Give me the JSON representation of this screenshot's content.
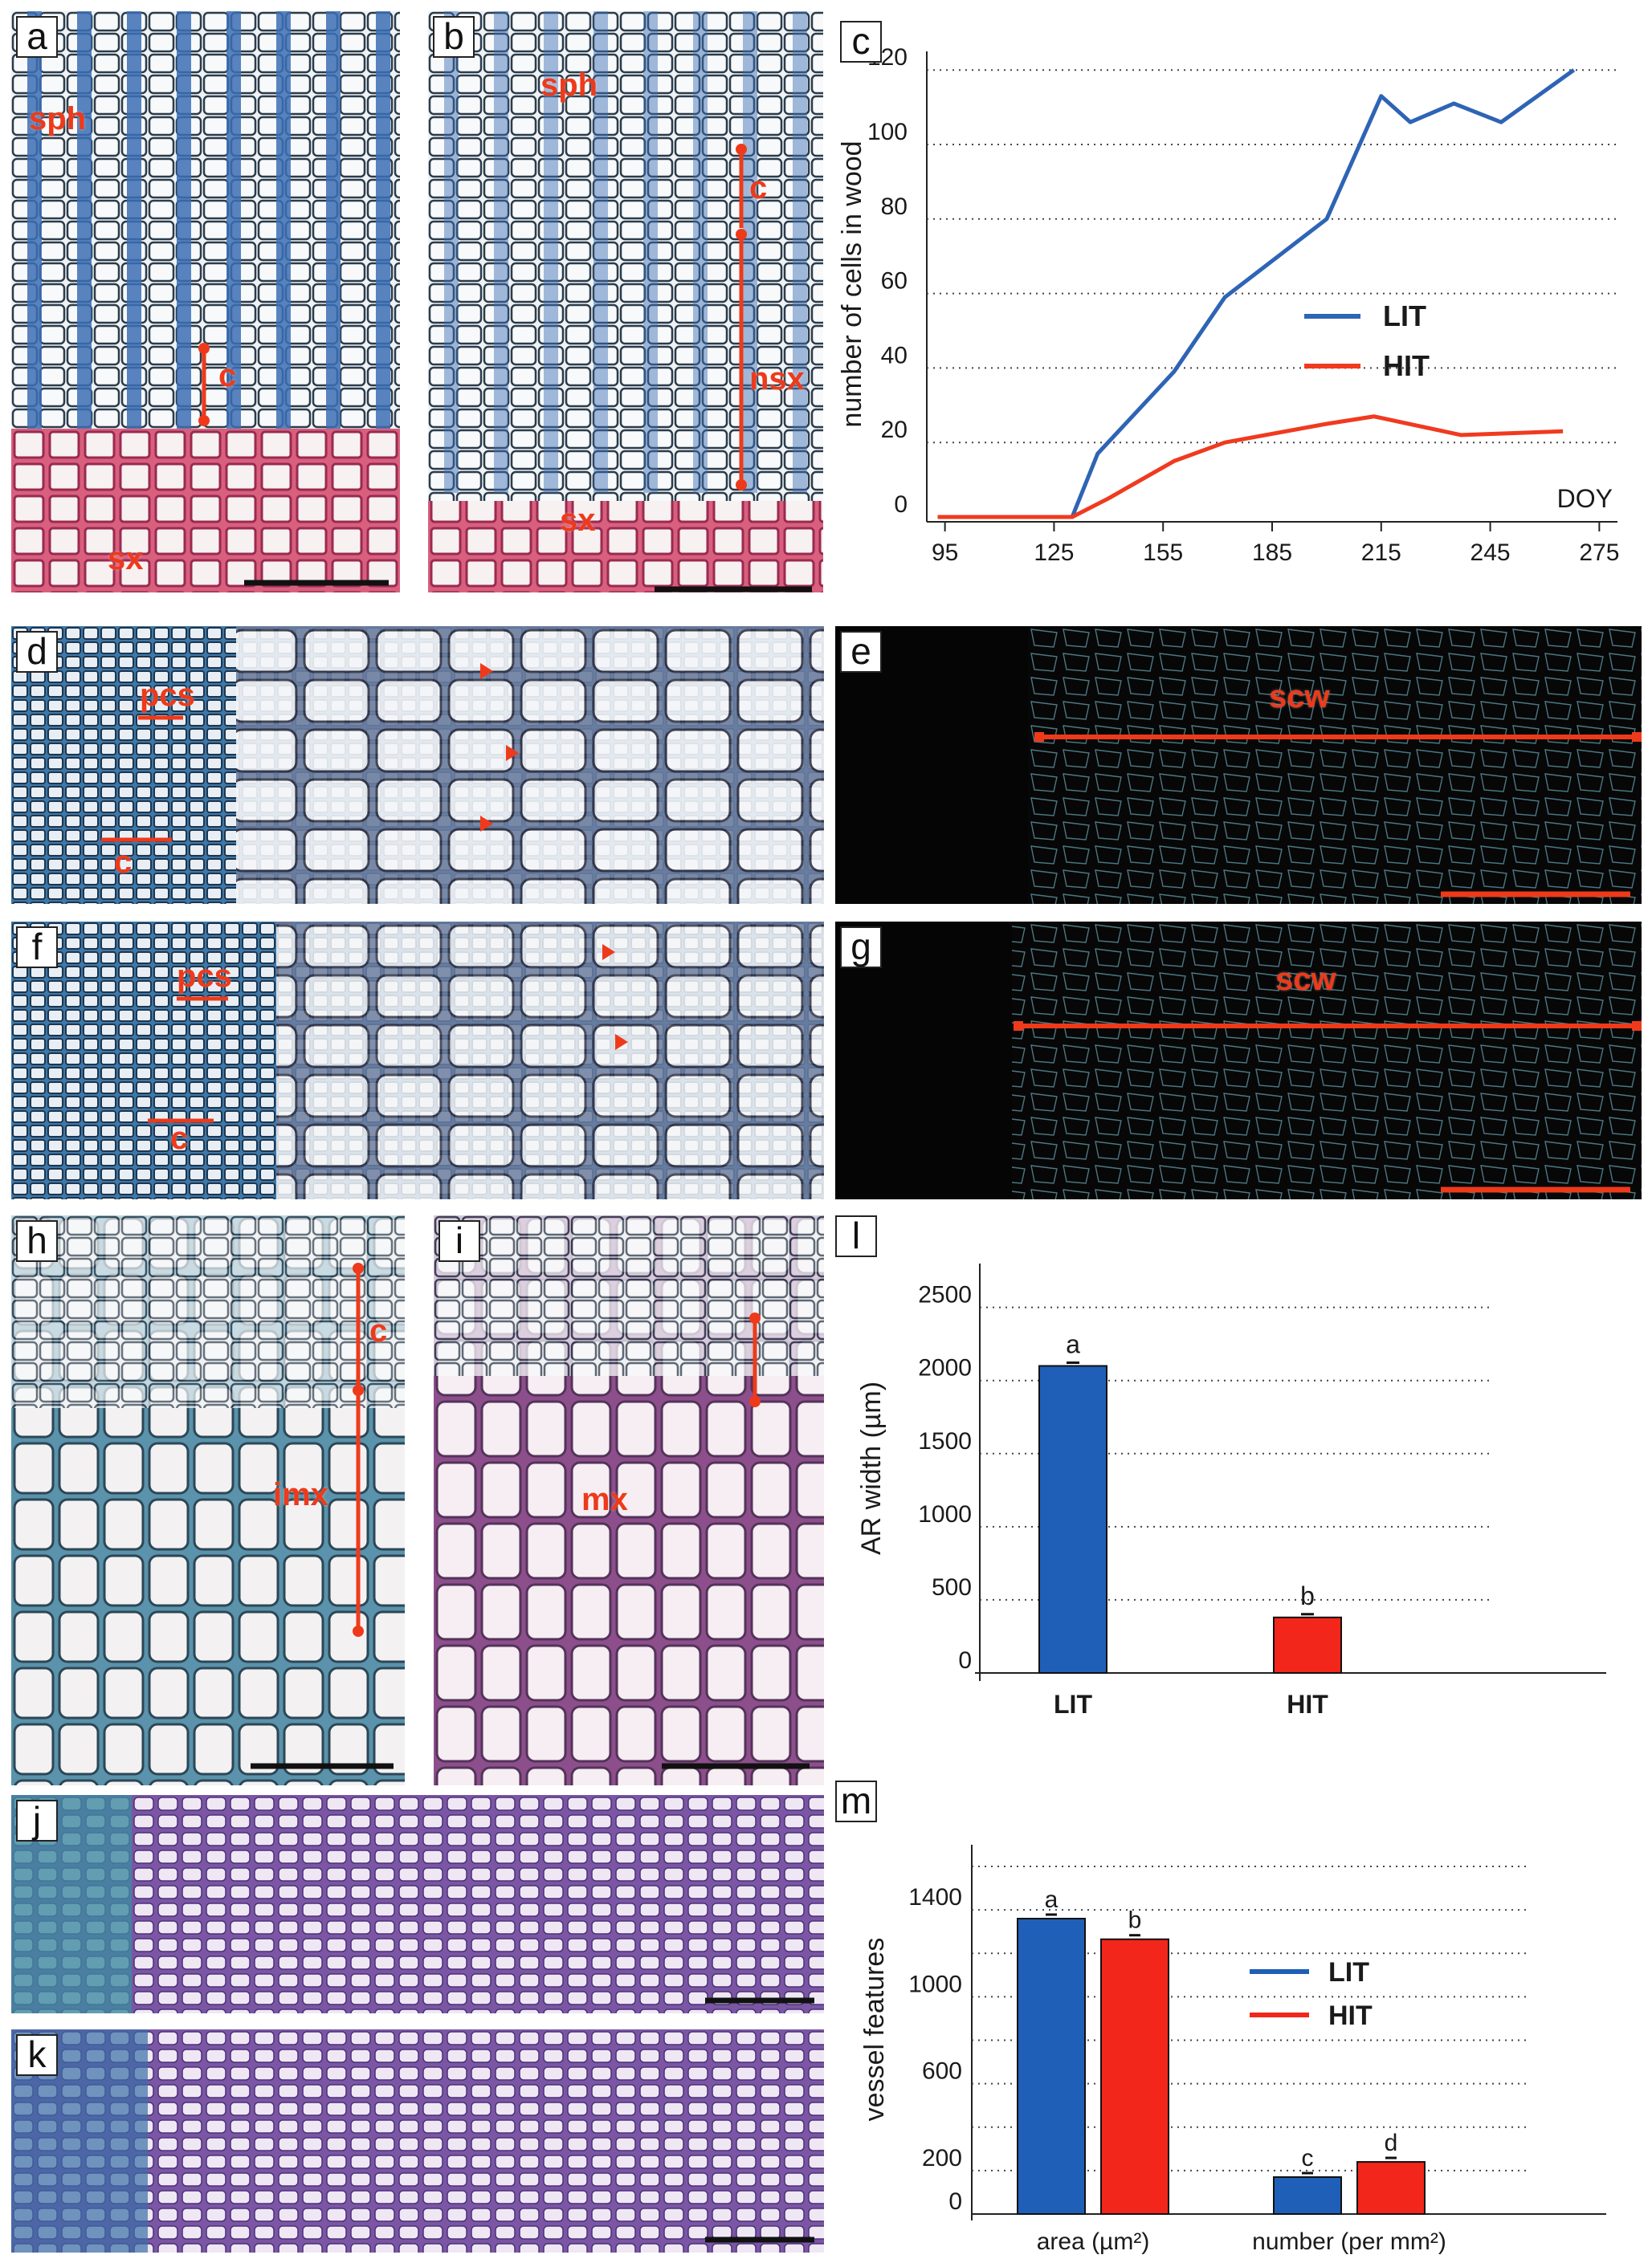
{
  "panels": {
    "a": {
      "label": "a",
      "annotations": [
        "sph",
        "c",
        "sx"
      ]
    },
    "b": {
      "label": "b",
      "annotations": [
        "sph",
        "c",
        "nsx",
        "sx"
      ]
    },
    "c": {
      "label": "c"
    },
    "d": {
      "label": "d",
      "annotations": [
        "pcs",
        "c"
      ]
    },
    "e": {
      "label": "e",
      "annotations": [
        "scw"
      ]
    },
    "f": {
      "label": "f",
      "annotations": [
        "pcs",
        "c"
      ]
    },
    "g": {
      "label": "g",
      "annotations": [
        "scw"
      ]
    },
    "h": {
      "label": "h",
      "annotations": [
        "c",
        "imx"
      ]
    },
    "i": {
      "label": "i",
      "annotations": [
        "mx"
      ]
    },
    "l": {
      "label": "l"
    },
    "j": {
      "label": "j"
    },
    "k": {
      "label": "k"
    },
    "m": {
      "label": "m"
    }
  },
  "colors": {
    "LIT": "#1f5fb8",
    "HIT": "#f2261a",
    "annotation": "#ee3a1a"
  },
  "chart_data": [
    {
      "id": "c",
      "type": "line",
      "ylabel": "number of cells in wood",
      "xlabel": "DOY",
      "x_ticks": [
        "95",
        "125",
        "155",
        "185",
        "215",
        "245",
        "275"
      ],
      "y_ticks": [
        "0",
        "20",
        "40",
        "60",
        "80",
        "100",
        "120"
      ],
      "xlim": [
        90,
        280
      ],
      "ylim": [
        0,
        125
      ],
      "legend_position": "right",
      "series": [
        {
          "name": "LIT",
          "color": "#2e64b5",
          "x": [
            93,
            130,
            137,
            158,
            172,
            200,
            215,
            223,
            235,
            248,
            268
          ],
          "y": [
            0,
            0,
            17,
            39,
            59,
            80,
            113,
            106,
            111,
            106,
            120
          ]
        },
        {
          "name": "HIT",
          "color": "#f03a1f",
          "x": [
            93,
            130,
            140,
            158,
            172,
            200,
            213,
            237,
            265
          ],
          "y": [
            0,
            0,
            5,
            15,
            20,
            25,
            27,
            22,
            23
          ]
        }
      ]
    },
    {
      "id": "l",
      "type": "bar",
      "ylabel": "AR width (µm)",
      "categories": [
        "LIT",
        "HIT"
      ],
      "values": [
        2100,
        380
      ],
      "colors": [
        "#1f5fb8",
        "#f2261a"
      ],
      "significance": [
        "a",
        "b"
      ],
      "y_ticks": [
        "0",
        "500",
        "1000",
        "1500",
        "2000",
        "2500"
      ],
      "ylim": [
        0,
        2800
      ]
    },
    {
      "id": "m",
      "type": "bar",
      "ylabel": "vessel features",
      "categories": [
        "area (µm²)",
        "number (per mm²)"
      ],
      "series": [
        {
          "name": "LIT",
          "color": "#1f5fb8",
          "values": [
            1360,
            170
          ],
          "significance": [
            "a",
            "c"
          ]
        },
        {
          "name": "HIT",
          "color": "#f2261a",
          "values": [
            1265,
            240
          ],
          "significance": [
            "b",
            "d"
          ]
        }
      ],
      "y_ticks": [
        "0",
        "200",
        "600",
        "1000",
        "1400"
      ],
      "ylim": [
        0,
        1700
      ],
      "legend_position": "right"
    }
  ]
}
